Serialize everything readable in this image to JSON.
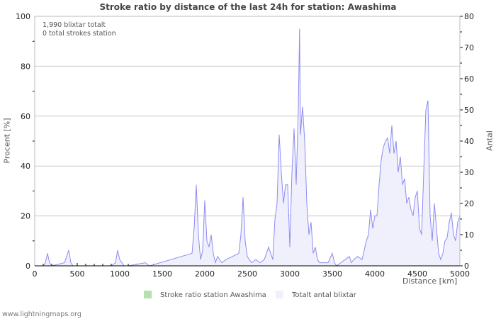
{
  "title": "Stroke ratio by distance of the last 24h for station: Awashima",
  "info": {
    "total": "1,990 blixtar totalt",
    "station": "0 total strokes station"
  },
  "legend": [
    {
      "label": "Stroke ratio station Awashima",
      "color": "#b5e0b0"
    },
    {
      "label": "Totalt antal blixtar",
      "color": "#f0f0fc"
    }
  ],
  "footer": "www.lightningmaps.org",
  "chart_data": {
    "type": "area",
    "title": "Stroke ratio by distance of the last 24h for station: Awashima",
    "xlabel": "Distance   [km]",
    "ylabel": "Procent   [%]",
    "y2label": "Antal",
    "xlim": [
      0,
      5000
    ],
    "ylim": [
      0,
      100
    ],
    "y2lim": [
      0,
      80
    ],
    "xticks": [
      "0",
      "500",
      "1000",
      "1500",
      "2000",
      "2500",
      "3000",
      "3500",
      "4000",
      "4500",
      "5000"
    ],
    "yticks": [
      "0",
      "20",
      "40",
      "60",
      "80",
      "100"
    ],
    "y2ticks": [
      "0",
      "10",
      "20",
      "30",
      "40",
      "50",
      "60",
      "70",
      "80"
    ],
    "grid": true,
    "legend_placement": "bottom",
    "series": [
      {
        "name": "Stroke ratio station Awashima",
        "axis": "left",
        "x": [],
        "values": []
      },
      {
        "name": "Totalt antal blixtar",
        "axis": "right",
        "x": [
          0,
          100,
          125,
          150,
          175,
          200,
          350,
          375,
          400,
          425,
          450,
          900,
          950,
          975,
          1000,
          1025,
          1050,
          1100,
          1300,
          1350,
          1850,
          1875,
          1900,
          1925,
          1950,
          1975,
          2000,
          2025,
          2050,
          2075,
          2100,
          2125,
          2150,
          2200,
          2250,
          2400,
          2425,
          2450,
          2475,
          2500,
          2550,
          2600,
          2650,
          2700,
          2750,
          2775,
          2800,
          2825,
          2850,
          2875,
          2900,
          2925,
          2950,
          2975,
          3000,
          3025,
          3050,
          3075,
          3100,
          3115,
          3125,
          3150,
          3175,
          3200,
          3225,
          3250,
          3275,
          3300,
          3325,
          3350,
          3400,
          3450,
          3500,
          3525,
          3550,
          3600,
          3650,
          3700,
          3725,
          3750,
          3800,
          3850,
          3900,
          3925,
          3950,
          3975,
          4000,
          4025,
          4050,
          4075,
          4100,
          4125,
          4150,
          4175,
          4200,
          4225,
          4250,
          4275,
          4300,
          4325,
          4350,
          4375,
          4400,
          4425,
          4450,
          4475,
          4500,
          4525,
          4550,
          4575,
          4600,
          4625,
          4650,
          4675,
          4700,
          4725,
          4750,
          4775,
          4800,
          4825,
          4850,
          4875,
          4900,
          4925,
          4950,
          4975,
          5000
        ],
        "values": [
          0,
          0,
          1,
          4,
          1,
          0,
          1,
          3,
          5,
          1,
          0,
          0,
          1,
          5,
          2,
          1,
          0,
          0,
          1,
          0,
          4,
          12,
          26,
          10,
          2,
          5,
          21,
          8,
          6,
          10,
          4,
          1,
          3,
          1,
          2,
          4,
          10,
          22,
          8,
          3,
          1,
          2,
          1,
          2,
          6,
          4,
          2,
          15,
          20,
          42,
          30,
          20,
          26,
          26,
          6,
          30,
          44,
          26,
          50,
          76,
          42,
          51,
          40,
          20,
          10,
          14,
          4,
          6,
          2,
          1,
          1,
          1,
          4,
          1,
          0,
          1,
          2,
          3,
          1,
          2,
          3,
          2,
          8,
          10,
          18,
          12,
          16,
          16,
          26,
          34,
          38,
          40,
          41,
          36,
          45,
          36,
          40,
          30,
          35,
          26,
          28,
          20,
          22,
          18,
          16,
          22,
          24,
          12,
          10,
          30,
          50,
          53,
          16,
          8,
          20,
          12,
          4,
          2,
          4,
          8,
          9,
          14,
          17,
          10,
          8,
          14,
          16
        ]
      }
    ]
  }
}
